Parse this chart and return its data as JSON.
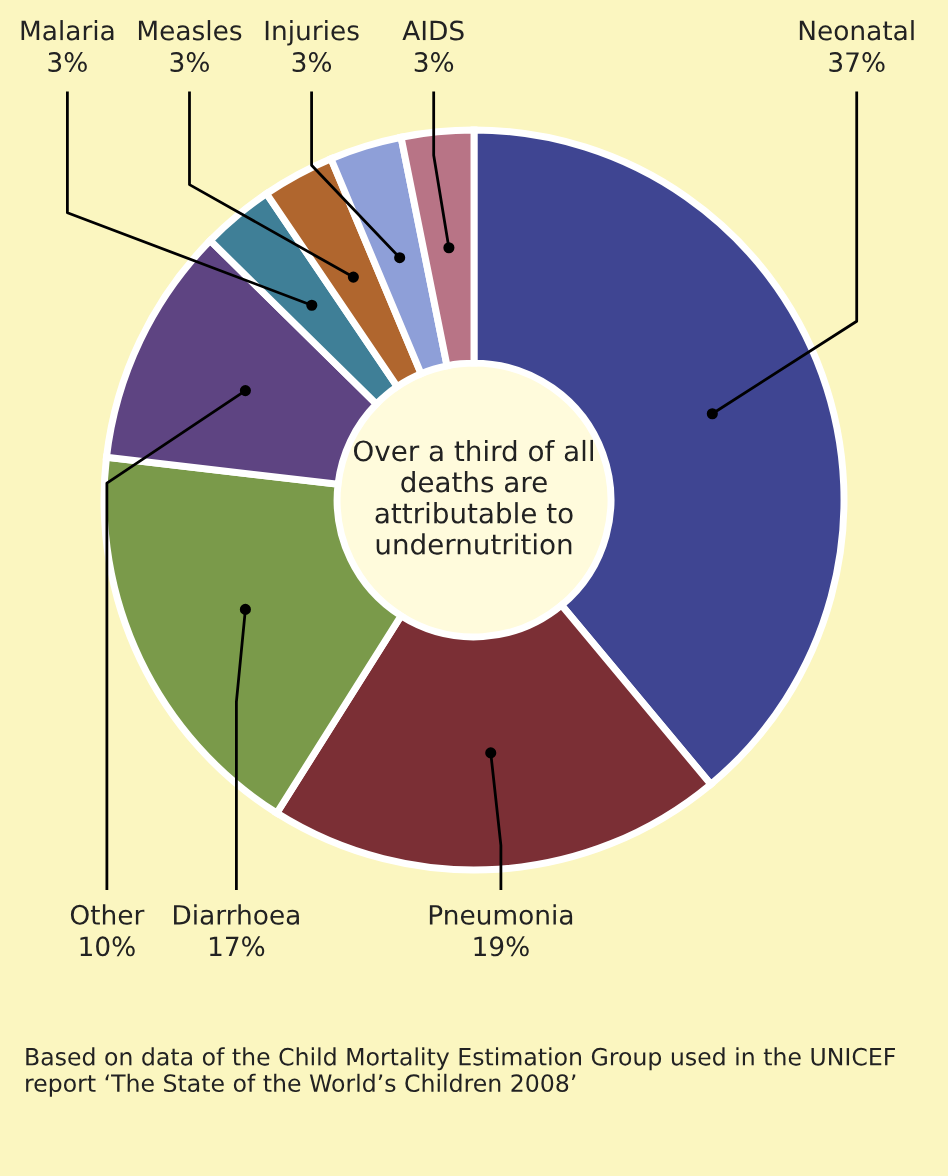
{
  "chart_data": {
    "type": "donut",
    "categories": [
      "Neonatal",
      "Pneumonia",
      "Diarrhoea",
      "Other",
      "Malaria",
      "Measles",
      "Injuries",
      "AIDS"
    ],
    "values": [
      37,
      19,
      17,
      10,
      3,
      3,
      3,
      3
    ],
    "value_labels": [
      "37%",
      "19%",
      "17%",
      "10%",
      "3%",
      "3%",
      "3%",
      "3%"
    ],
    "colors": [
      "#3f4592",
      "#7b2f35",
      "#7a9a4a",
      "#5e4482",
      "#3f7f97",
      "#b0662e",
      "#8e9fd8",
      "#b87486"
    ],
    "annotations": [
      "Over a third of all deaths are attributable to undernutrition",
      "Based on data of the Child Mortality Estimation Group used in the UNICEF report ‘The State of the World’s Children 2008’"
    ],
    "legend": false
  }
}
